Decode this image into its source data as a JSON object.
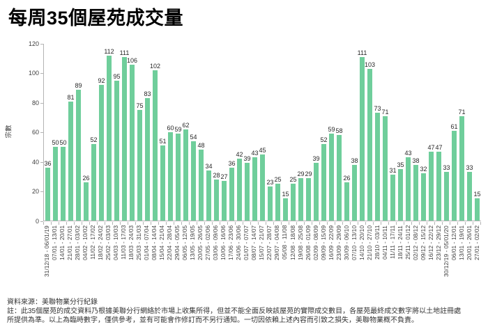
{
  "title": "每周35個屋苑成交量",
  "chart_data": {
    "type": "bar",
    "title": "每周35個屋苑成交量",
    "xlabel": "",
    "ylabel": "宗數",
    "ylim": [
      0,
      120
    ],
    "yticks": [
      0,
      20,
      40,
      60,
      80,
      100,
      120
    ],
    "grid": false,
    "legend_position": "none",
    "bar_color": "#6fce9b",
    "categories": [
      "31/12/18 - 06/01/19",
      "07/01 - 13/01",
      "14/01 - 20/01",
      "21/01 - 27/01",
      "28/01 - 03/02",
      "04/02 - 10/02",
      "11/02 - 17/02",
      "18/02 - 24/02",
      "25/02 - 03/03",
      "04/03 - 10/03",
      "11/03 - 17/03",
      "18/03 - 24/03",
      "25/03 - 31/03",
      "01/04 - 07/04",
      "08/04 - 14/04",
      "15/04 - 21/04",
      "22/04 - 28/04",
      "29/04 - 05/05",
      "06/05 - 12/05",
      "13/05 - 19/05",
      "20/05 - 26/05",
      "27/05 - 02/06",
      "03/06 - 09/06",
      "10/06 - 16/06",
      "17/06 - 23/06",
      "24/06 - 30/06",
      "01/07 - 07/07",
      "08/07 - 14/07",
      "15/07 - 21/07",
      "22/07 - 28/07",
      "29/07 - 04/08",
      "05/08 - 11/08",
      "12/08 - 18/08",
      "19/08 - 25/08",
      "26/08 - 01/09",
      "02/09 - 08/09",
      "09/09 - 15/09",
      "16/09 - 22/09",
      "23/09 - 29/09",
      "30/09 - 06/10",
      "07/10 - 13/10",
      "14/10 - 20/10",
      "21/10 - 27/10",
      "28/10 - 03/11",
      "04/11 - 10/11",
      "11/11 - 17/11",
      "18/11 - 24/11",
      "25/11 - 01/12",
      "02/12 - 08/12",
      "09/12 - 15/12",
      "16/12 - 22/12",
      "23/12 - 29/12",
      "30/12/19 - 05/01/20",
      "06/01 - 12/01",
      "13/01 - 19/01",
      "20/01 - 26/01",
      "27/01 - 02/02"
    ],
    "values": [
      36,
      50,
      50,
      81,
      89,
      26,
      52,
      92,
      112,
      95,
      111,
      106,
      75,
      83,
      102,
      51,
      60,
      59,
      62,
      54,
      48,
      34,
      28,
      27,
      36,
      42,
      39,
      43,
      45,
      23,
      25,
      15,
      25,
      29,
      29,
      39,
      52,
      59,
      58,
      26,
      38,
      111,
      103,
      73,
      71,
      31,
      35,
      43,
      38,
      32,
      47,
      47,
      33,
      61,
      71,
      33,
      15
    ]
  },
  "footer": {
    "source": "資料來源：美聯物業分行紀錄",
    "note_line1": "註：此35個屋苑的成交資料乃根據美聯分行網絡於市場上收集所得，但並不能全面反映該屋苑的實際成交數目，各屋苑最終成交數字將以土地註冊處",
    "note_line2": "所提供為準。以上為臨時數字，僅供參考，並有可能會作修訂而不另行通知。一切因依賴上述內容而引致之損失，美聯物業概不負責。"
  }
}
